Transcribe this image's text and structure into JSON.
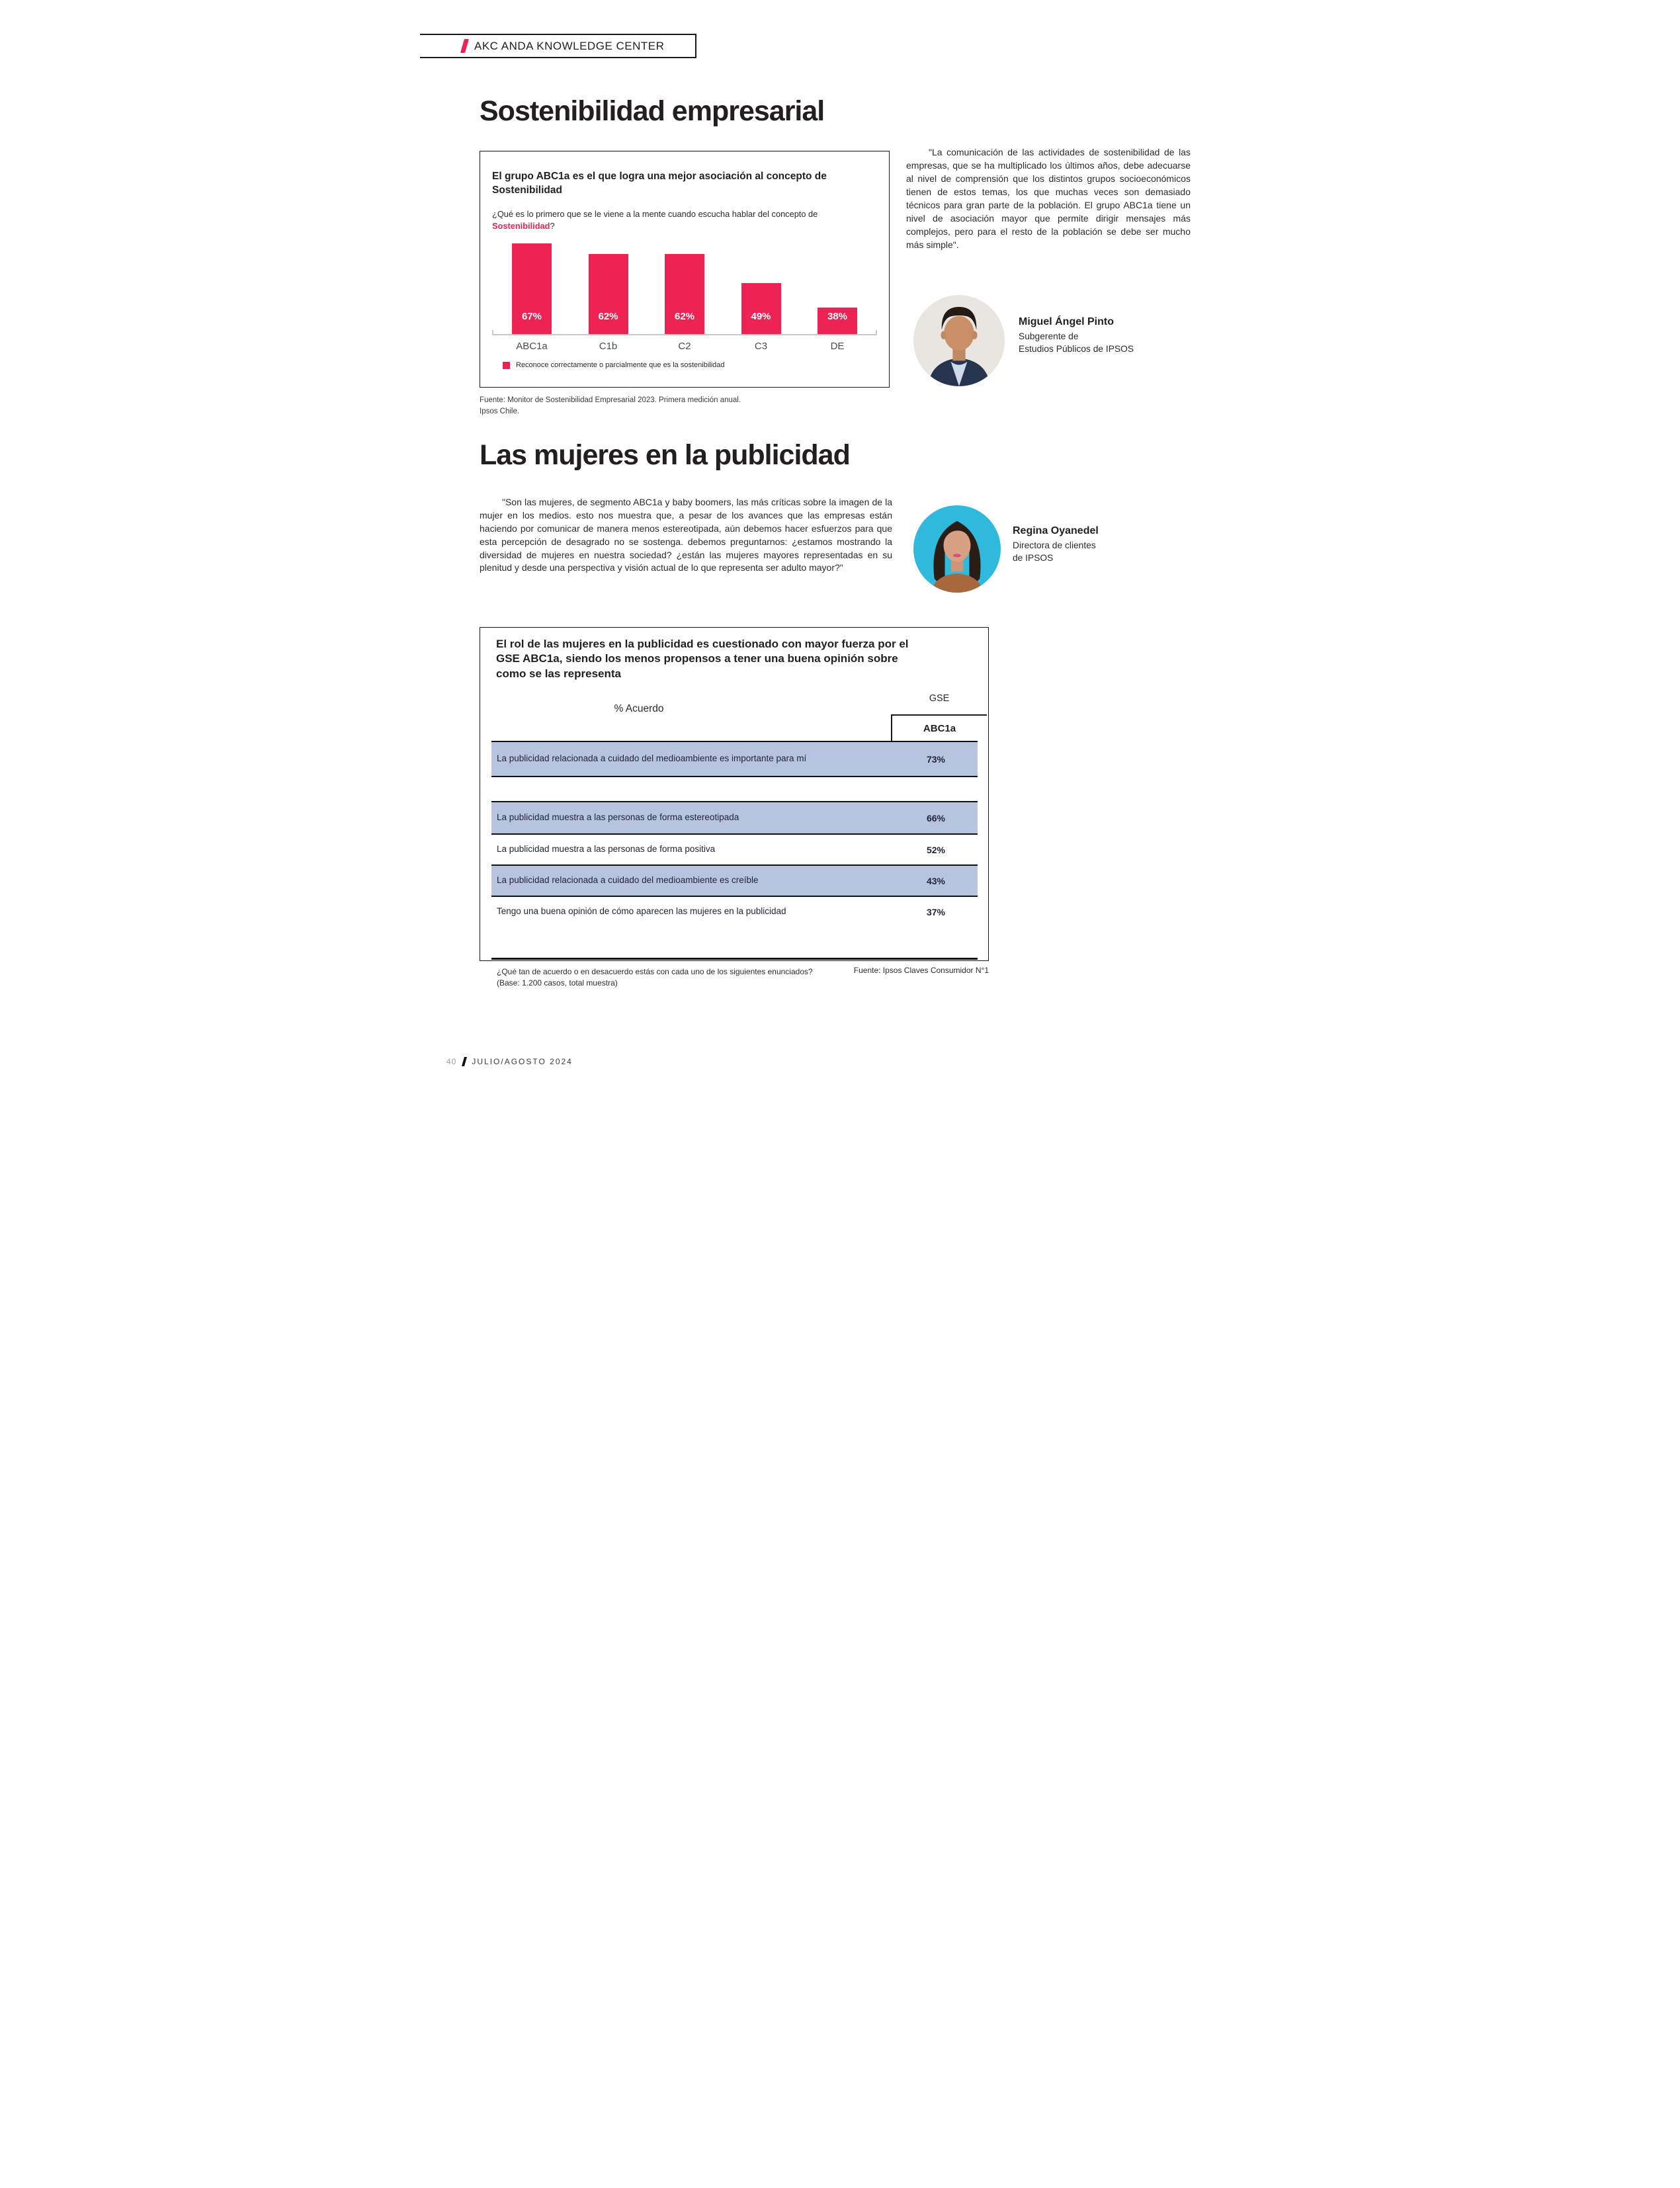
{
  "header": {
    "brand": "AKC ANDA KNOWLEDGE CENTER"
  },
  "section1": {
    "title": "Sostenibilidad empresarial",
    "chart_box": {
      "title": "El grupo ABC1a es el que logra una mejor asociación al concepto de Sostenibilidad",
      "question_prefix": "¿Qué es lo primero que se le viene a la mente cuando escucha hablar del concepto de ",
      "question_highlight": "Sostenibilidad",
      "question_suffix": "?",
      "legend": "Reconoce correctamente o parcialmente que es la sostenibilidad"
    },
    "source_line1": "Fuente: Monitor de Sostenibilidad Empresarial 2023. Primera medición anual.",
    "source_line2": "Ipsos Chile.",
    "quote": "\"La comunicación de las actividades de sostenibilidad de las empresas, que se ha multiplicado los últimos años, debe adecuarse al nivel de comprensión que los distintos grupos socioeconómicos tienen de estos temas, los que muchas veces son demasiado técnicos para gran parte de la población. El grupo ABC1a tiene un nivel de asociación mayor que permite dirigir mensajes más complejos, pero para el resto de la población se debe ser mucho más simple\".",
    "person": {
      "name": "Miguel Ángel Pinto",
      "role_line1": "Subgerente de",
      "role_line2": "Estudios Públicos de IPSOS"
    }
  },
  "chart_data": {
    "type": "bar",
    "title": "El grupo ABC1a es el que logra una mejor asociación al concepto de Sostenibilidad",
    "categories": [
      "ABC1a",
      "C1b",
      "C2",
      "C3",
      "DE"
    ],
    "values": [
      67,
      62,
      62,
      49,
      38
    ],
    "labels": [
      "67%",
      "62%",
      "62%",
      "49%",
      "38%"
    ],
    "legend": [
      "Reconoce correctamente o parcialmente que es la sostenibilidad"
    ],
    "bar_color": "#ED2353",
    "axis": "truncated baseline, no gridlines, value labels inside bars"
  },
  "section2": {
    "title": "Las mujeres en la publicidad",
    "quote": "\"Son las mujeres, de segmento ABC1a y baby boomers, las más críticas sobre la imagen de la mujer en los medios. esto nos muestra que, a pesar de los avances que las empresas están haciendo por comunicar de manera menos estereotipada, aún debemos hacer esfuerzos para que esta percepción de desagrado no se sostenga. debemos preguntarnos: ¿estamos mostrando la diversidad de mujeres en nuestra sociedad? ¿están las mujeres mayores representadas en su plenitud y desde una perspectiva y visión actual de lo que representa ser adulto mayor?\"",
    "person": {
      "name": "Regina Oyanedel",
      "role_line1": "Directora de clientes",
      "role_line2": "de IPSOS"
    },
    "table_box": {
      "title": "El rol de las mujeres en la publicidad es cuestionado con mayor fuerza por el GSE ABC1a, siendo los menos propensos a tener una buena opinión sobre como se las representa",
      "col_label": "% Acuerdo",
      "group_label": "GSE",
      "col_header": "ABC1a",
      "rows": [
        {
          "label": "La publicidad relacionada a cuidado del medioambiente es importante para mí",
          "value": "73%",
          "highlight": true
        },
        {
          "label": "La publicidad muestra a las personas de forma estereotipada",
          "value": "66%",
          "highlight": true
        },
        {
          "label": "La publicidad muestra a las personas de forma positiva",
          "value": "52%",
          "highlight": false
        },
        {
          "label": "La publicidad relacionada a cuidado del medioambiente es creíble",
          "value": "43%",
          "highlight": true
        },
        {
          "label": "Tengo una buena opinión de cómo aparecen las mujeres en la publicidad",
          "value": "37%",
          "highlight": false
        }
      ],
      "footnote_line1": "¿Qué tan de acuerdo o en desacuerdo estás con cada uno de los siguientes enunciados?",
      "footnote_line2": "(Base: 1.200 casos, total muestra)"
    },
    "source": "Fuente: Ipsos Claves Consumidor N°1"
  },
  "footer": {
    "page": "40",
    "issue": "JULIO/AGOSTO 2024"
  },
  "colors": {
    "accent": "#ED2353",
    "row_highlight": "#B7C4E0",
    "ink": "#231F20",
    "axis_gray": "#C9C9C9"
  }
}
